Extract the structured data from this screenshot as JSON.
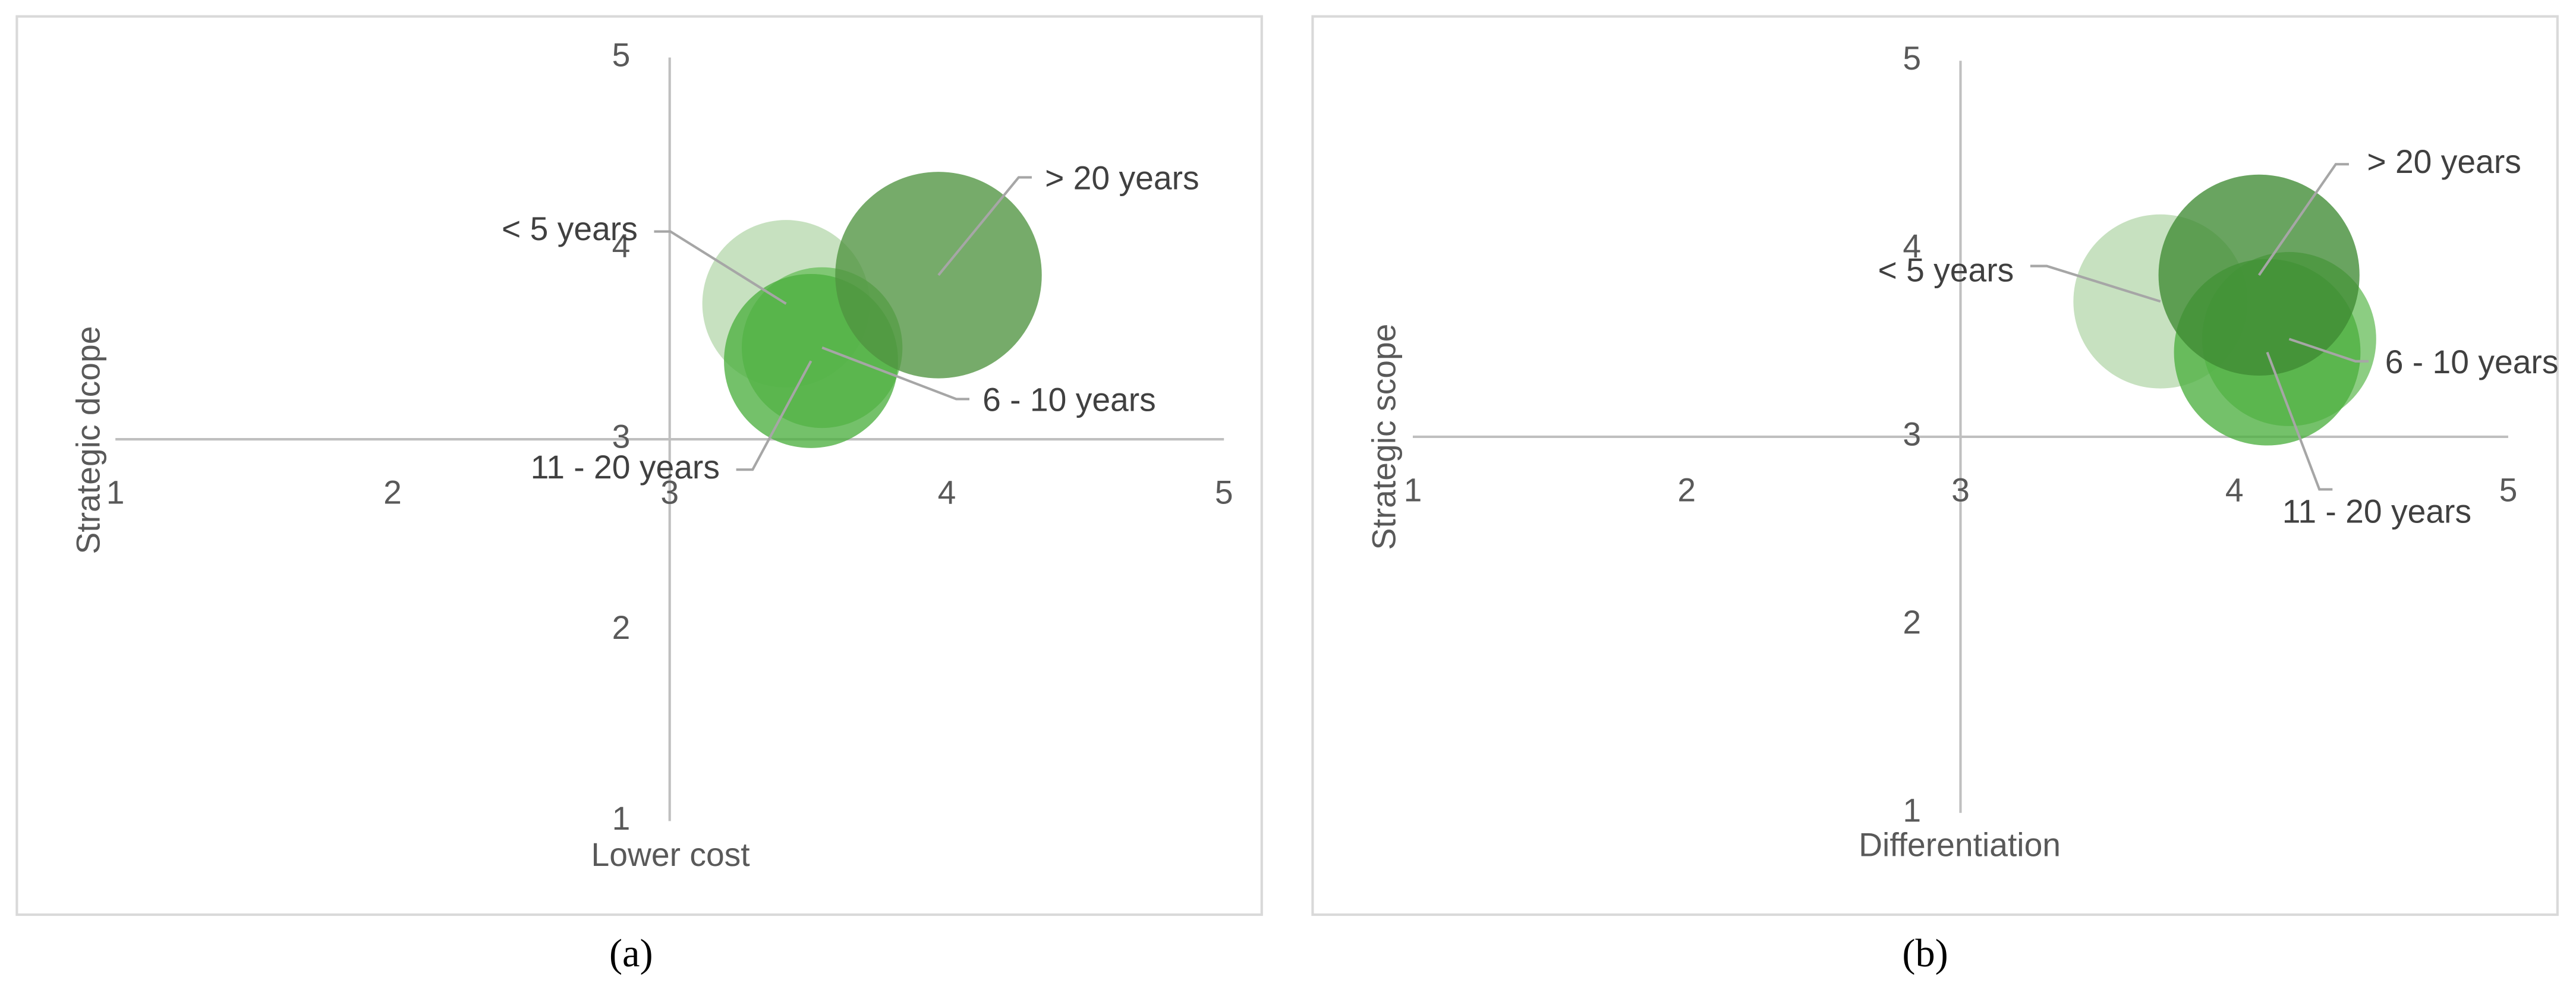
{
  "chart_data": [
    {
      "type": "bubble",
      "caption": "(a)",
      "x_label": "Lower cost",
      "y_label": "Strategic dcope",
      "xlim": [
        1,
        5
      ],
      "ylim": [
        1,
        5
      ],
      "xticks": [
        1,
        2,
        3,
        4,
        5
      ],
      "yticks": [
        1,
        2,
        3,
        4,
        5
      ],
      "cross": [
        3,
        3
      ],
      "series": [
        {
          "name": "< 5 years",
          "color": "#b7d9ae",
          "x": 3.42,
          "y": 3.71,
          "size": 25
        },
        {
          "name": "6 - 10 years",
          "color": "#6cbf5f",
          "x": 3.55,
          "y": 3.48,
          "size": 23
        },
        {
          "name": "11 - 20 years",
          "color": "#4daf40",
          "x": 3.51,
          "y": 3.41,
          "size": 27
        },
        {
          "name": "> 20 years",
          "color": "#4f9440",
          "x": 3.97,
          "y": 3.86,
          "size": 38
        }
      ]
    },
    {
      "type": "bubble",
      "caption": "(b)",
      "x_label": "Differentiation",
      "y_label": "Strategic scope",
      "xlim": [
        1,
        5
      ],
      "ylim": [
        1,
        5
      ],
      "xticks": [
        1,
        2,
        3,
        4,
        5
      ],
      "yticks": [
        1,
        2,
        3,
        4,
        5
      ],
      "cross": [
        3,
        3
      ],
      "series": [
        {
          "name": "< 5 years",
          "color": "#b7d9ae",
          "x": 3.73,
          "y": 3.72,
          "size": 27
        },
        {
          "name": "6 - 10 years",
          "color": "#6cbf5f",
          "x": 4.2,
          "y": 3.52,
          "size": 27
        },
        {
          "name": "11 - 20 years",
          "color": "#4daf40",
          "x": 4.12,
          "y": 3.45,
          "size": 31
        },
        {
          "name": "> 20 years",
          "color": "#3f8a33",
          "x": 4.09,
          "y": 3.86,
          "size": 36
        }
      ]
    }
  ]
}
